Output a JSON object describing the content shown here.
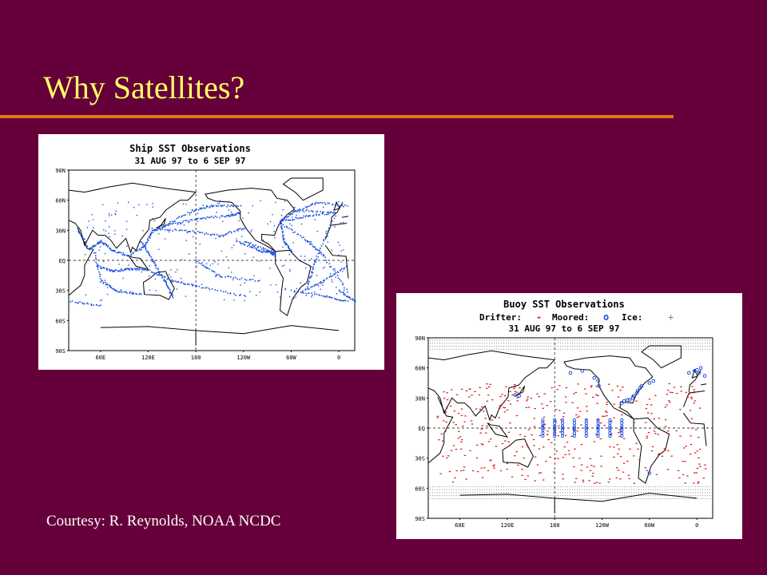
{
  "slide": {
    "title": "Why Satellites?",
    "courtesy": "Courtesy: R. Reynolds, NOAA NCDC"
  },
  "colors": {
    "background": "#66003a",
    "title": "#ffff66",
    "rule": "#e07a10",
    "ship_obs": "#1a4fe0",
    "drifter": "#dd1111",
    "moored": "#1a4fe0",
    "ice": "#888888"
  },
  "ship_map": {
    "title": "Ship SST Observations",
    "subtitle": "31 AUG 97 to  6 SEP 97",
    "lat_labels": [
      "90N",
      "60N",
      "30N",
      "EQ",
      "30S",
      "60S",
      "90S"
    ],
    "lon_labels": [
      "60E",
      "120E",
      "180",
      "120W",
      "60W",
      "0"
    ]
  },
  "buoy_map": {
    "title": "Buoy SST Observations",
    "legend_drifter": "Drifter:",
    "legend_drifter_symbol": "-",
    "legend_moored": "Moored:",
    "legend_moored_symbol": "o",
    "legend_ice": "Ice:",
    "legend_ice_symbol": "+",
    "subtitle": "31 AUG 97 to  6 SEP 97",
    "lat_labels": [
      "90N",
      "60N",
      "30N",
      "EQ",
      "30S",
      "60S",
      "90S"
    ],
    "lon_labels": [
      "60E",
      "120E",
      "180",
      "120W",
      "60W",
      "0"
    ]
  }
}
